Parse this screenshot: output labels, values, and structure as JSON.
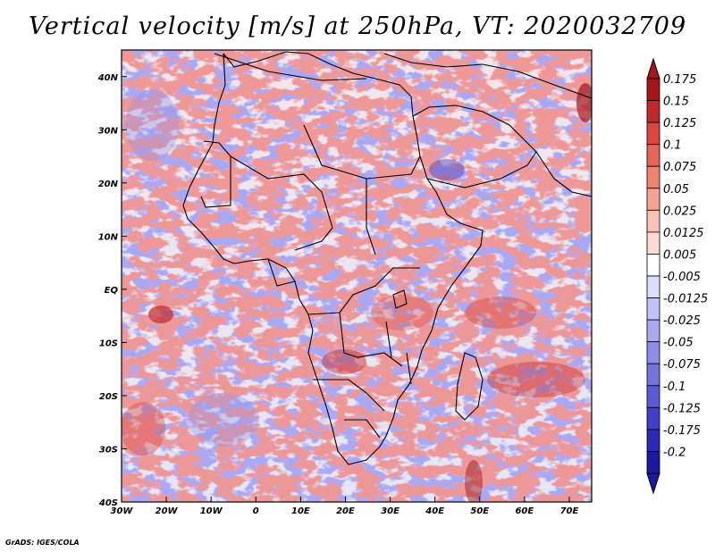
{
  "title": "Vertical velocity [m/s] at 250hPa, VT: 2020032709",
  "credit": "GrADS: IGES/COLA",
  "map": {
    "lon_range": [
      -30,
      75
    ],
    "lat_range": [
      -40,
      45
    ],
    "lon_ticks": [
      {
        "lon": -30,
        "label": "30W"
      },
      {
        "lon": -20,
        "label": "20W"
      },
      {
        "lon": -10,
        "label": "10W"
      },
      {
        "lon": 0,
        "label": "0"
      },
      {
        "lon": 10,
        "label": "10E"
      },
      {
        "lon": 20,
        "label": "20E"
      },
      {
        "lon": 30,
        "label": "30E"
      },
      {
        "lon": 40,
        "label": "40E"
      },
      {
        "lon": 50,
        "label": "50E"
      },
      {
        "lon": 60,
        "label": "60E"
      },
      {
        "lon": 70,
        "label": "70E"
      }
    ],
    "lat_ticks": [
      {
        "lat": 40,
        "label": "40N"
      },
      {
        "lat": 30,
        "label": "30N"
      },
      {
        "lat": 20,
        "label": "20N"
      },
      {
        "lat": 10,
        "label": "10N"
      },
      {
        "lat": 0,
        "label": "EQ"
      },
      {
        "lat": -10,
        "label": "10S"
      },
      {
        "lat": -20,
        "label": "20S"
      },
      {
        "lat": -30,
        "label": "30S"
      },
      {
        "lat": -40,
        "label": "40S"
      }
    ]
  },
  "colorbar": {
    "levels": [
      {
        "label": "0.175",
        "color": "#a4161a"
      },
      {
        "label": "0.15",
        "color": "#c0282b"
      },
      {
        "label": "0.125",
        "color": "#d9473f"
      },
      {
        "label": "0.1",
        "color": "#e86458"
      },
      {
        "label": "0.075",
        "color": "#f08272"
      },
      {
        "label": "0.05",
        "color": "#f6a292"
      },
      {
        "label": "0.025",
        "color": "#fbc1b4"
      },
      {
        "label": "0.0125",
        "color": "#fddcd4"
      },
      {
        "label": "0.005",
        "color": "#ffffff"
      },
      {
        "label": "-0.005",
        "color": "#dcdcfb"
      },
      {
        "label": "-0.0125",
        "color": "#c2c2f6"
      },
      {
        "label": "-0.025",
        "color": "#a8a8ef"
      },
      {
        "label": "-0.05",
        "color": "#8e8ee8"
      },
      {
        "label": "-0.075",
        "color": "#7474df"
      },
      {
        "label": "-0.1",
        "color": "#5a5ad4"
      },
      {
        "label": "-0.125",
        "color": "#4040c6"
      },
      {
        "label": "-0.175",
        "color": "#2a2ab4"
      },
      {
        "label": "-0.2",
        "color": "#1a1aa0"
      }
    ]
  }
}
